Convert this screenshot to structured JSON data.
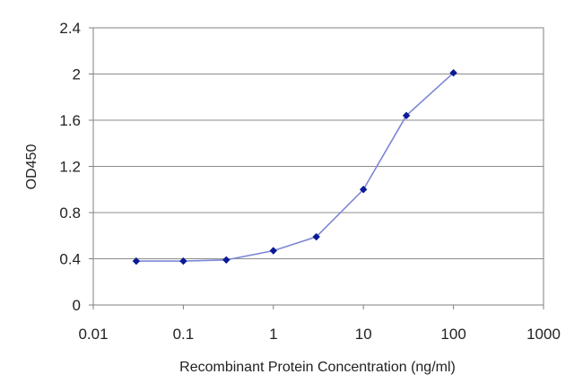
{
  "chart_data": {
    "type": "line",
    "title": "",
    "xlabel": "Recombinant Protein Concentration (ng/ml)",
    "ylabel": "OD450",
    "x_scale": "log",
    "xlim": [
      0.01,
      1000
    ],
    "ylim": [
      0,
      2.4
    ],
    "x_ticks": [
      0.01,
      0.1,
      1,
      10,
      100,
      1000
    ],
    "x_tick_labels": [
      "0.01",
      "0.1",
      "1",
      "10",
      "100",
      "1000"
    ],
    "y_ticks": [
      0,
      0.4,
      0.8,
      1.2,
      1.6,
      2,
      2.4
    ],
    "y_tick_labels": [
      "0",
      "0.4",
      "0.8",
      "1.2",
      "1.6",
      "2",
      "2.4"
    ],
    "grid": "horizontal",
    "legend": "none",
    "series": [
      {
        "x": [
          0.03,
          0.1,
          0.3,
          1,
          3,
          10,
          30,
          100
        ],
        "y": [
          0.38,
          0.38,
          0.39,
          0.47,
          0.59,
          1.0,
          1.64,
          2.01
        ],
        "line_color": "#7d86d6",
        "marker_color": "#0a1a96"
      }
    ]
  }
}
